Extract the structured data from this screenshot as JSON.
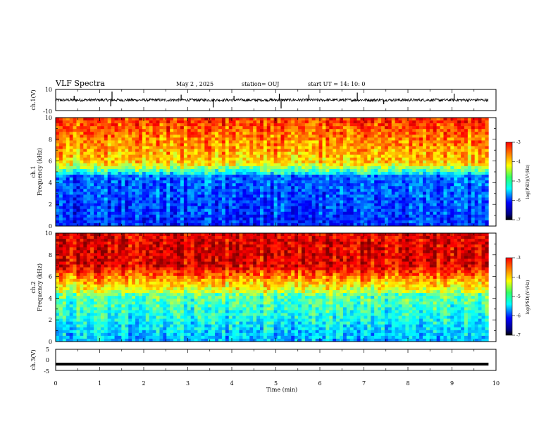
{
  "header": {
    "title": "VLF Spectra",
    "date": "May 2  , 2025",
    "station": "station= OUJ",
    "start": "start  UT  =   14: 10: 0"
  },
  "chart_data": [
    {
      "type": "line",
      "panel": "ch1-waveform",
      "ylabel": "ch.1(V)",
      "ylim": [
        -10,
        10
      ],
      "y_ticks": [
        "10",
        "-10"
      ],
      "baseline": 0,
      "spike_times_min": [
        0.42,
        1.25,
        1.28,
        2.85,
        3.58,
        4.05,
        5.08,
        5.12,
        5.75,
        6.85,
        7.45,
        9.05
      ]
    },
    {
      "type": "heatmap",
      "panel": "ch1-spectrogram",
      "ylabel": "ch.1\nFrequency  (kHz)",
      "ylim": [
        0,
        10
      ],
      "y_ticks": [
        "10",
        "8",
        "6",
        "4",
        "2",
        "0"
      ],
      "colorbar": {
        "label": "log(PSD)(V²/Hz)",
        "range": [
          -7,
          -3
        ],
        "ticks": [
          "-3",
          "-4",
          "-5",
          "-6",
          "-7"
        ],
        "colormap": "jet"
      }
    },
    {
      "type": "heatmap",
      "panel": "ch2-spectrogram",
      "ylabel": "ch.2\nFrequency  (kHz)",
      "ylim": [
        0,
        10
      ],
      "y_ticks": [
        "10",
        "8",
        "6",
        "4",
        "2",
        "0"
      ],
      "colorbar": {
        "label": "log(PSD)(V²/Hz)",
        "range": [
          -7,
          -3
        ],
        "ticks": [
          "-3",
          "-4",
          "-5",
          "-6",
          "-7"
        ],
        "colormap": "jet"
      }
    },
    {
      "type": "line",
      "panel": "ch3-waveform",
      "ylabel": "ch.3(V)",
      "ylim": [
        -5,
        5
      ],
      "y_ticks": [
        "5",
        "0",
        "-5"
      ],
      "values": [
        -2,
        -2
      ],
      "x": [
        0,
        9.83
      ]
    }
  ],
  "x_axis": {
    "label": "Time  (min)",
    "range": [
      0,
      10
    ],
    "ticks": [
      "0",
      "1",
      "2",
      "3",
      "4",
      "5",
      "6",
      "7",
      "8",
      "9",
      "10"
    ]
  },
  "colors": {
    "colormap": [
      "#00007f",
      "#0000ff",
      "#00ffff",
      "#7fff7f",
      "#ffff00",
      "#ff7f00",
      "#ff0000"
    ]
  }
}
